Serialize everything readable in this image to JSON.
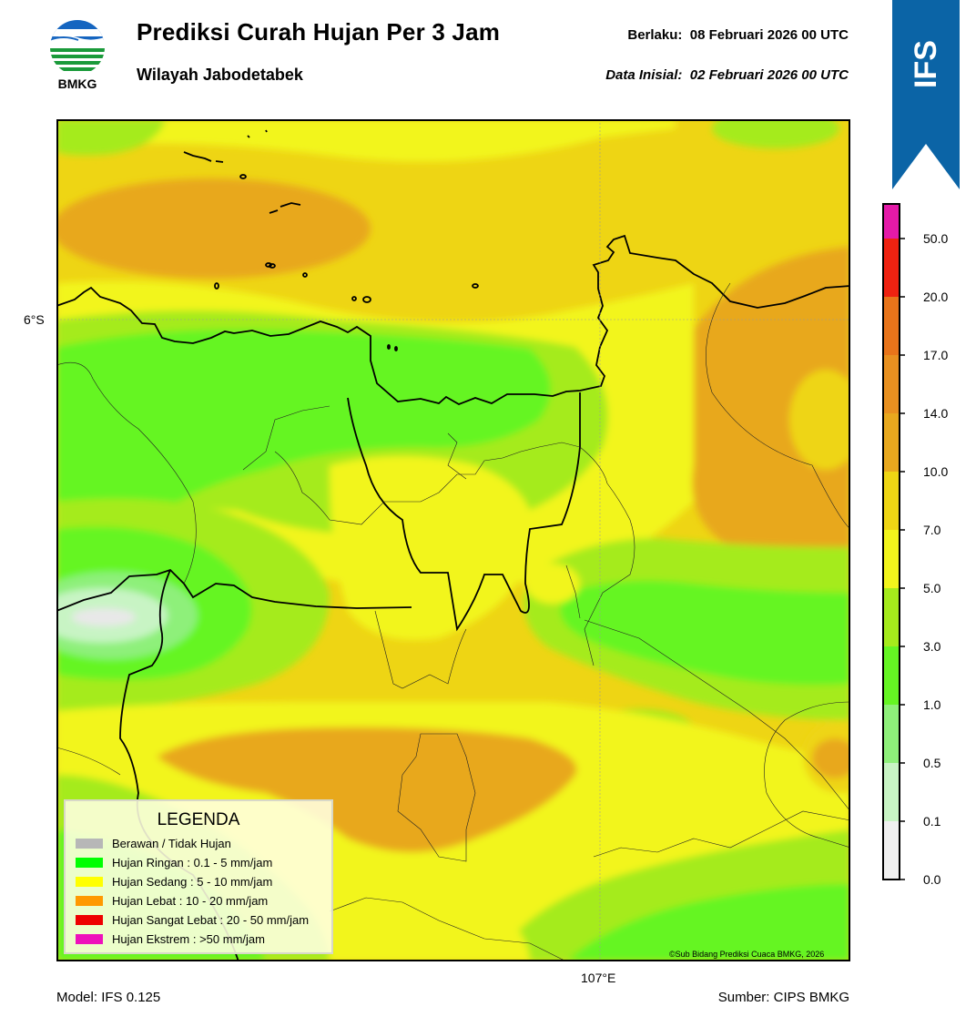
{
  "header": {
    "title": "Prediksi Curah Hujan Per 3 Jam",
    "subtitle": "Wilayah Jabodetabek",
    "valid_label": "Berlaku:",
    "valid_value": "08 Februari 2026 00 UTC",
    "init_label": "Data Inisial:",
    "init_value": "02 Februari 2026 00 UTC"
  },
  "logo": {
    "text": "BMKG",
    "icon": "bmkg-logo-icon"
  },
  "ribbon": {
    "text": "IFS",
    "color": "#0b64a6"
  },
  "map": {
    "lat_label": "6°S",
    "lon_label": "107°E",
    "copyright": "©Sub Bidang Prediksi Cuaca BMKG, 2026",
    "colors": {
      "yellow": "#f2f51c",
      "gold": "#eed514",
      "orange": "#e8a81e",
      "lime": "#a5eb1c",
      "green": "#65f523",
      "lightgreen": "#8ef07a",
      "palegreen": "#c8f4c4",
      "nodata": "#e8e8e8"
    }
  },
  "legend": {
    "title": "LEGENDA",
    "items": [
      {
        "label": "Berawan / Tidak Hujan",
        "color": "#b7b7b7"
      },
      {
        "label": "Hujan Ringan : 0.1 - 5 mm/jam",
        "color": "#00ff00"
      },
      {
        "label": "Hujan Sedang : 5 - 10 mm/jam",
        "color": "#ffff00"
      },
      {
        "label": "Hujan Lebat : 10 - 20 mm/jam",
        "color": "#ff9900"
      },
      {
        "label": "Hujan Sangat Lebat : 20 - 50 mm/jam",
        "color": "#ee0000"
      },
      {
        "label": "Hujan Ekstrem : >50 mm/jam",
        "color": "#ee11bb"
      }
    ]
  },
  "colorbar": {
    "labels": [
      "0.0",
      "0.1",
      "0.5",
      "1.0",
      "3.0",
      "5.0",
      "7.0",
      "10.0",
      "14.0",
      "17.0",
      "20.0",
      "50.0"
    ],
    "colors": [
      "#f0f0f0",
      "#c8f4c4",
      "#8ef07a",
      "#65f523",
      "#a5eb1c",
      "#f2f51c",
      "#eed514",
      "#e8a81e",
      "#e89020",
      "#e8741a",
      "#ee2211",
      "#e41aa8"
    ]
  },
  "footer": {
    "model": "Model: IFS 0.125",
    "source": "Sumber: CIPS BMKG"
  }
}
